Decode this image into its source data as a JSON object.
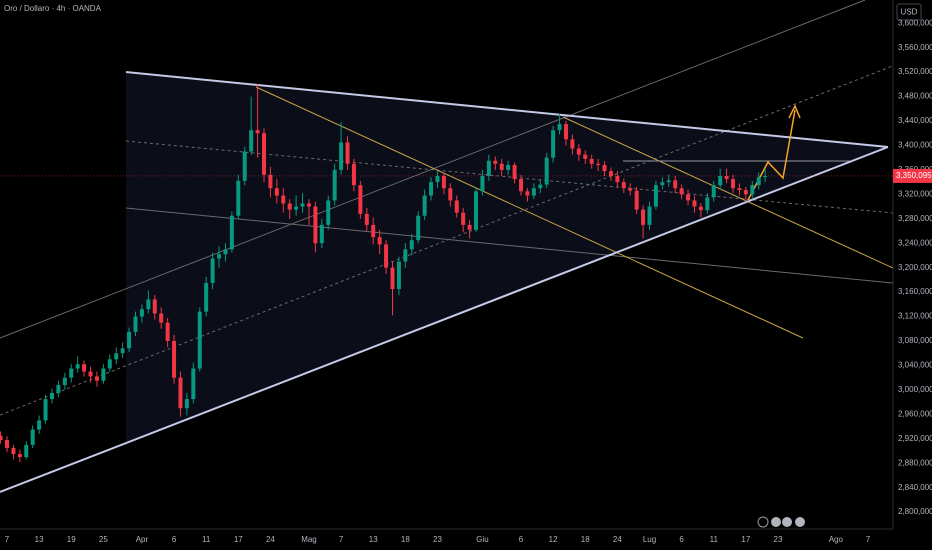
{
  "chart_data": {
    "type": "candlestick",
    "title": "Oro / Dollaro · 4h · OANDA",
    "currency": "USD",
    "up_color": "#089981",
    "down_color": "#f23645",
    "categories": [
      null,
      "7",
      null,
      null,
      null,
      null,
      "13",
      null,
      null,
      null,
      null,
      "19",
      null,
      null,
      null,
      null,
      "25",
      null,
      null,
      null,
      null,
      null,
      "Apr",
      null,
      null,
      null,
      null,
      "6",
      null,
      null,
      null,
      null,
      "11",
      null,
      null,
      null,
      null,
      "17",
      null,
      null,
      null,
      null,
      "24",
      null,
      null,
      null,
      null,
      null,
      "Mag",
      null,
      null,
      null,
      null,
      "7",
      null,
      null,
      null,
      null,
      "13",
      null,
      null,
      null,
      null,
      "18",
      null,
      null,
      null,
      null,
      "23",
      null,
      null,
      null,
      null,
      null,
      null,
      "Giu",
      null,
      null,
      null,
      null,
      null,
      "6",
      null,
      null,
      null,
      null,
      "12",
      null,
      null,
      null,
      null,
      "18",
      null,
      null,
      null,
      null,
      "24",
      null,
      null,
      null,
      null,
      "Lug",
      null,
      null,
      null,
      null,
      "6",
      null,
      null,
      null,
      null,
      "11",
      null,
      null,
      null,
      null,
      "17",
      null,
      null,
      null,
      null,
      "23",
      null,
      null,
      null,
      null,
      null,
      null,
      null,
      null,
      "Ago",
      null,
      null,
      null,
      null,
      "7"
    ],
    "ohlc": [
      [
        2925,
        2932,
        2912,
        2918
      ],
      [
        2918,
        2924,
        2898,
        2905
      ],
      [
        2905,
        2910,
        2886,
        2895
      ],
      [
        2895,
        2902,
        2882,
        2890
      ],
      [
        2890,
        2916,
        2886,
        2910
      ],
      [
        2910,
        2942,
        2905,
        2935
      ],
      [
        2935,
        2958,
        2928,
        2950
      ],
      [
        2950,
        2992,
        2945,
        2985
      ],
      [
        2985,
        3002,
        2978,
        2995
      ],
      [
        2995,
        3015,
        2988,
        3008
      ],
      [
        3008,
        3028,
        3000,
        3020
      ],
      [
        3020,
        3042,
        3012,
        3035
      ],
      [
        3035,
        3055,
        3028,
        3042
      ],
      [
        3042,
        3048,
        3022,
        3030
      ],
      [
        3030,
        3038,
        3012,
        3022
      ],
      [
        3022,
        3030,
        3005,
        3015
      ],
      [
        3015,
        3042,
        3010,
        3035
      ],
      [
        3035,
        3058,
        3030,
        3050
      ],
      [
        3050,
        3070,
        3042,
        3060
      ],
      [
        3060,
        3078,
        3052,
        3068
      ],
      [
        3068,
        3102,
        3062,
        3095
      ],
      [
        3095,
        3128,
        3088,
        3120
      ],
      [
        3120,
        3140,
        3110,
        3132
      ],
      [
        3132,
        3163,
        3125,
        3148
      ],
      [
        3148,
        3155,
        3115,
        3125
      ],
      [
        3125,
        3135,
        3100,
        3110
      ],
      [
        3110,
        3118,
        3070,
        3080
      ],
      [
        3080,
        3090,
        3010,
        3020
      ],
      [
        3020,
        3030,
        2956,
        2970
      ],
      [
        2970,
        2995,
        2958,
        2985
      ],
      [
        2985,
        3045,
        2978,
        3035
      ],
      [
        3035,
        3135,
        3030,
        3128
      ],
      [
        3128,
        3185,
        3120,
        3175
      ],
      [
        3175,
        3225,
        3165,
        3215
      ],
      [
        3215,
        3235,
        3200,
        3222
      ],
      [
        3222,
        3240,
        3210,
        3230
      ],
      [
        3230,
        3292,
        3225,
        3285
      ],
      [
        3285,
        3352,
        3280,
        3342
      ],
      [
        3342,
        3398,
        3335,
        3390
      ],
      [
        3390,
        3480,
        3385,
        3425
      ],
      [
        3425,
        3500,
        3380,
        3420
      ],
      [
        3420,
        3428,
        3340,
        3352
      ],
      [
        3352,
        3365,
        3315,
        3330
      ],
      [
        3330,
        3345,
        3305,
        3318
      ],
      [
        3318,
        3330,
        3290,
        3305
      ],
      [
        3305,
        3312,
        3280,
        3295
      ],
      [
        3295,
        3318,
        3285,
        3300
      ],
      [
        3300,
        3322,
        3290,
        3305
      ],
      [
        3305,
        3312,
        3270,
        3300
      ],
      [
        3300,
        3308,
        3225,
        3240
      ],
      [
        3240,
        3280,
        3232,
        3270
      ],
      [
        3270,
        3318,
        3262,
        3310
      ],
      [
        3310,
        3370,
        3302,
        3360
      ],
      [
        3360,
        3438,
        3352,
        3405
      ],
      [
        3405,
        3415,
        3360,
        3370
      ],
      [
        3370,
        3378,
        3325,
        3335
      ],
      [
        3335,
        3342,
        3280,
        3288
      ],
      [
        3288,
        3298,
        3260,
        3270
      ],
      [
        3270,
        3282,
        3238,
        3250
      ],
      [
        3250,
        3262,
        3222,
        3238
      ],
      [
        3238,
        3245,
        3190,
        3200
      ],
      [
        3200,
        3210,
        3122,
        3165
      ],
      [
        3165,
        3218,
        3155,
        3210
      ],
      [
        3210,
        3240,
        3200,
        3230
      ],
      [
        3230,
        3255,
        3220,
        3245
      ],
      [
        3245,
        3292,
        3240,
        3285
      ],
      [
        3285,
        3328,
        3278,
        3318
      ],
      [
        3318,
        3348,
        3310,
        3340
      ],
      [
        3340,
        3358,
        3330,
        3350
      ],
      [
        3350,
        3356,
        3320,
        3330
      ],
      [
        3330,
        3338,
        3300,
        3310
      ],
      [
        3310,
        3318,
        3282,
        3290
      ],
      [
        3290,
        3298,
        3258,
        3270
      ],
      [
        3270,
        3278,
        3248,
        3262
      ],
      [
        3262,
        3332,
        3258,
        3325
      ],
      [
        3325,
        3360,
        3318,
        3350
      ],
      [
        3350,
        3385,
        3342,
        3375
      ],
      [
        3375,
        3382,
        3360,
        3370
      ],
      [
        3370,
        3378,
        3350,
        3360
      ],
      [
        3360,
        3375,
        3352,
        3368
      ],
      [
        3368,
        3372,
        3338,
        3345
      ],
      [
        3345,
        3352,
        3318,
        3325
      ],
      [
        3325,
        3330,
        3308,
        3318
      ],
      [
        3318,
        3338,
        3312,
        3330
      ],
      [
        3330,
        3345,
        3322,
        3336
      ],
      [
        3336,
        3388,
        3330,
        3380
      ],
      [
        3380,
        3432,
        3372,
        3425
      ],
      [
        3425,
        3452,
        3418,
        3435
      ],
      [
        3435,
        3440,
        3400,
        3410
      ],
      [
        3410,
        3418,
        3385,
        3395
      ],
      [
        3395,
        3402,
        3375,
        3385
      ],
      [
        3385,
        3392,
        3370,
        3378
      ],
      [
        3378,
        3385,
        3362,
        3370
      ],
      [
        3370,
        3378,
        3358,
        3368
      ],
      [
        3368,
        3374,
        3350,
        3358
      ],
      [
        3358,
        3364,
        3342,
        3350
      ],
      [
        3350,
        3358,
        3332,
        3340
      ],
      [
        3340,
        3346,
        3322,
        3330
      ],
      [
        3330,
        3338,
        3318,
        3326
      ],
      [
        3326,
        3332,
        3288,
        3295
      ],
      [
        3295,
        3302,
        3248,
        3270
      ],
      [
        3270,
        3308,
        3262,
        3300
      ],
      [
        3300,
        3342,
        3295,
        3335
      ],
      [
        3335,
        3348,
        3328,
        3340
      ],
      [
        3340,
        3352,
        3332,
        3343
      ],
      [
        3343,
        3350,
        3322,
        3330
      ],
      [
        3330,
        3336,
        3312,
        3320
      ],
      [
        3320,
        3328,
        3302,
        3310
      ],
      [
        3310,
        3318,
        3290,
        3300
      ],
      [
        3300,
        3306,
        3282,
        3294
      ],
      [
        3294,
        3322,
        3288,
        3315
      ],
      [
        3315,
        3342,
        3308,
        3335
      ],
      [
        3335,
        3362,
        3328,
        3350
      ],
      [
        3350,
        3362,
        3338,
        3345
      ],
      [
        3345,
        3352,
        3322,
        3330
      ],
      [
        3330,
        3338,
        3318,
        3327
      ],
      [
        3327,
        3332,
        3308,
        3320
      ],
      [
        3320,
        3342,
        3312,
        3335
      ],
      [
        3335,
        3356,
        3328,
        3348
      ],
      [
        3348,
        3362,
        3340,
        3350.095
      ],
      null,
      null,
      null,
      null,
      null,
      null,
      null,
      null,
      null,
      null,
      null,
      null,
      null,
      null,
      null,
      null
    ],
    "last_price": {
      "value": 3350.095,
      "label": "3,350,095"
    },
    "ylim": [
      2774,
      3638
    ],
    "yticks": [
      {
        "value": 2800,
        "label": "2,800,000"
      },
      {
        "value": 2840,
        "label": "2,840,000"
      },
      {
        "value": 2880,
        "label": "2,880,000"
      },
      {
        "value": 2920,
        "label": "2,920,000"
      },
      {
        "value": 2960,
        "label": "2,960,000"
      },
      {
        "value": 3000,
        "label": "3,000,000"
      },
      {
        "value": 3040,
        "label": "3,040,000"
      },
      {
        "value": 3080,
        "label": "3,080,000"
      },
      {
        "value": 3120,
        "label": "3,120,000"
      },
      {
        "value": 3160,
        "label": "3,160,000"
      },
      {
        "value": 3200,
        "label": "3,200,000"
      },
      {
        "value": 3240,
        "label": "3,240,000"
      },
      {
        "value": 3280,
        "label": "3,280,000"
      },
      {
        "value": 3320,
        "label": "3,320,000"
      },
      {
        "value": 3360,
        "label": "3,360,000"
      },
      {
        "value": 3400,
        "label": "3,400,000"
      },
      {
        "value": 3440,
        "label": "3,440,000"
      },
      {
        "value": 3480,
        "label": "3,480,000"
      },
      {
        "value": 3520,
        "label": "3,520,000"
      },
      {
        "value": 3560,
        "label": "3,560,000"
      },
      {
        "value": 3600,
        "label": "3,600,000"
      }
    ],
    "grid": false
  }
}
